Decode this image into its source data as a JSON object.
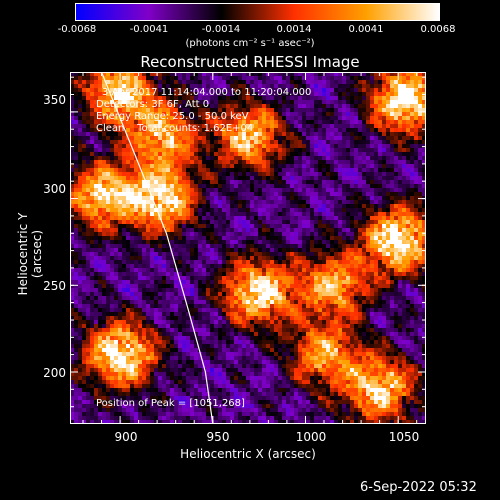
{
  "colorbar": {
    "ticks": [
      "-0.0068",
      "-0.0041",
      "-0.0014",
      "0.0014",
      "0.0041",
      "0.0068"
    ],
    "unit_label": "(photons cm⁻² s⁻¹ asec⁻²)"
  },
  "info": {
    "time": "3-Apr-2017 11:14:04.000 to 11:20:04.000",
    "detectors": "Detectors: 3F 6F, Att 0",
    "energy": "Energy Range: 25.0 - 50.0 keV",
    "method": "Clean    Total counts: 1.62E+04",
    "peak": "Position of Peak = [1051,268]"
  },
  "datestamp": "6-Sep-2022 05:32",
  "chart_data": {
    "type": "heatmap",
    "title": "Reconstructed RHESSI Image",
    "xlabel": "Heliocentric X (arcsec)",
    "ylabel": "Heliocentric Y (arcsec)",
    "xlim": [
      873,
      1065
    ],
    "ylim": [
      170,
      373
    ],
    "x_ticks": [
      900,
      950,
      1000,
      1050
    ],
    "y_ticks": [
      200,
      250,
      300,
      350
    ],
    "zlim": [
      -0.0068,
      0.0068
    ],
    "colormap": [
      "#0000ff",
      "#8000c8",
      "#000000",
      "#ff3000",
      "#ffa000",
      "#ffffff"
    ],
    "limb_points": [
      [
        890,
        373
      ],
      [
        910,
        320
      ],
      [
        925,
        280
      ],
      [
        937,
        235
      ],
      [
        946,
        200
      ],
      [
        950,
        170
      ]
    ],
    "sources": [
      {
        "x": 1054,
        "y": 357,
        "peak": 0.0068
      },
      {
        "x": 900,
        "y": 362,
        "peak": 0.0055
      },
      {
        "x": 923,
        "y": 336,
        "peak": 0.0041
      },
      {
        "x": 970,
        "y": 336,
        "peak": 0.0045
      },
      {
        "x": 890,
        "y": 302,
        "peak": 0.005
      },
      {
        "x": 922,
        "y": 300,
        "peak": 0.006
      },
      {
        "x": 1050,
        "y": 276,
        "peak": 0.0068
      },
      {
        "x": 975,
        "y": 246,
        "peak": 0.0062
      },
      {
        "x": 1015,
        "y": 250,
        "peak": 0.004
      },
      {
        "x": 900,
        "y": 210,
        "peak": 0.0068
      },
      {
        "x": 1040,
        "y": 190,
        "peak": 0.0055
      },
      {
        "x": 1010,
        "y": 210,
        "peak": 0.0035
      }
    ]
  }
}
